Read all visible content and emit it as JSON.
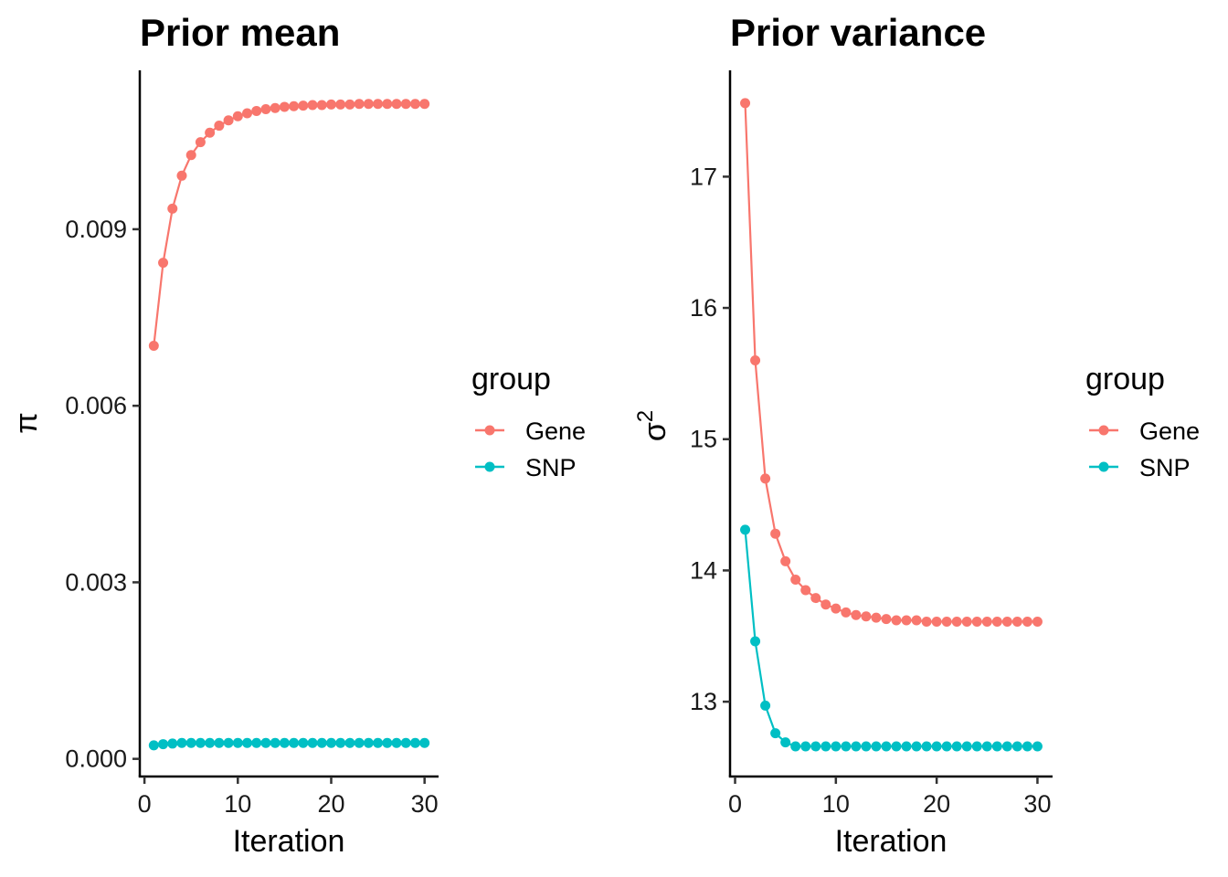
{
  "colors": {
    "Gene": "#F8766D",
    "SNP": "#00BFC4"
  },
  "chart_data": [
    {
      "type": "line",
      "title": "Prior mean",
      "xlabel": "Iteration",
      "ylabel": "π",
      "x": [
        1,
        2,
        3,
        4,
        5,
        6,
        7,
        8,
        9,
        10,
        11,
        12,
        13,
        14,
        15,
        16,
        17,
        18,
        19,
        20,
        21,
        22,
        23,
        24,
        25,
        26,
        27,
        28,
        29,
        30
      ],
      "xlim": [
        -0.5,
        31.5
      ],
      "ylim": [
        -0.0003,
        0.0117
      ],
      "xticks": [
        0,
        10,
        20,
        30
      ],
      "xtick_labels": [
        "0",
        "10",
        "20",
        "30"
      ],
      "yticks": [
        0,
        0.003,
        0.006,
        0.009
      ],
      "ytick_labels": [
        "0.000",
        "0.003",
        "0.006",
        "0.009"
      ],
      "legend": {
        "title": "group",
        "position": "right",
        "entries": [
          "Gene",
          "SNP"
        ]
      },
      "grid": false,
      "series": [
        {
          "name": "Gene",
          "values": [
            0.00702,
            0.00843,
            0.00935,
            0.00991,
            0.01026,
            0.01048,
            0.01064,
            0.01076,
            0.01085,
            0.01092,
            0.01097,
            0.01101,
            0.01104,
            0.01106,
            0.01108,
            0.01109,
            0.0111,
            0.01111,
            0.01111,
            0.01112,
            0.01112,
            0.01112,
            0.01113,
            0.01113,
            0.01113,
            0.01113,
            0.01113,
            0.01113,
            0.01113,
            0.01113
          ]
        },
        {
          "name": "SNP",
          "values": [
            0.00023,
            0.00025,
            0.00026,
            0.00027,
            0.00027,
            0.00027,
            0.00027,
            0.00027,
            0.00027,
            0.00027,
            0.00027,
            0.00027,
            0.00027,
            0.00027,
            0.00027,
            0.00027,
            0.00027,
            0.00027,
            0.00027,
            0.00027,
            0.00027,
            0.00027,
            0.00027,
            0.00027,
            0.00027,
            0.00027,
            0.00027,
            0.00027,
            0.00027,
            0.00027
          ]
        }
      ]
    },
    {
      "type": "line",
      "title": "Prior variance",
      "xlabel": "Iteration",
      "ylabel": "σ",
      "ylabel_superscript": "2",
      "x": [
        1,
        2,
        3,
        4,
        5,
        6,
        7,
        8,
        9,
        10,
        11,
        12,
        13,
        14,
        15,
        16,
        17,
        18,
        19,
        20,
        21,
        22,
        23,
        24,
        25,
        26,
        27,
        28,
        29,
        30
      ],
      "xlim": [
        -0.5,
        31.5
      ],
      "ylim": [
        12.43,
        17.81
      ],
      "xticks": [
        0,
        10,
        20,
        30
      ],
      "xtick_labels": [
        "0",
        "10",
        "20",
        "30"
      ],
      "yticks": [
        13,
        14,
        15,
        16,
        17
      ],
      "ytick_labels": [
        "13",
        "14",
        "15",
        "16",
        "17"
      ],
      "legend": {
        "title": "group",
        "position": "right",
        "entries": [
          "Gene",
          "SNP"
        ]
      },
      "grid": false,
      "series": [
        {
          "name": "Gene",
          "values": [
            17.56,
            15.6,
            14.7,
            14.28,
            14.07,
            13.93,
            13.85,
            13.79,
            13.74,
            13.71,
            13.68,
            13.66,
            13.65,
            13.64,
            13.63,
            13.62,
            13.62,
            13.62,
            13.61,
            13.61,
            13.61,
            13.61,
            13.61,
            13.61,
            13.61,
            13.61,
            13.61,
            13.61,
            13.61,
            13.61
          ]
        },
        {
          "name": "SNP",
          "values": [
            14.31,
            13.46,
            12.97,
            12.76,
            12.69,
            12.66,
            12.66,
            12.66,
            12.66,
            12.66,
            12.66,
            12.66,
            12.66,
            12.66,
            12.66,
            12.66,
            12.66,
            12.66,
            12.66,
            12.66,
            12.66,
            12.66,
            12.66,
            12.66,
            12.66,
            12.66,
            12.66,
            12.66,
            12.66,
            12.66
          ]
        }
      ]
    }
  ]
}
